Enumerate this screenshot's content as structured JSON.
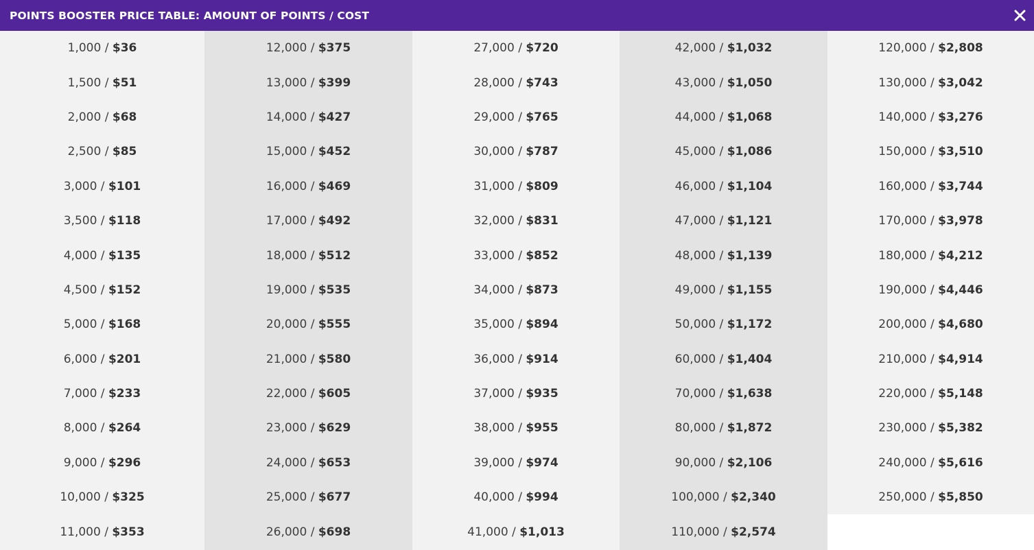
{
  "header": {
    "title": "POINTS BOOSTER PRICE TABLE: AMOUNT OF POINTS / COST",
    "close_icon": "close-icon",
    "background_color": "#52259a"
  },
  "separator": " / ",
  "columns": [
    [
      {
        "points": "1,000",
        "cost": "$36"
      },
      {
        "points": "1,500",
        "cost": "$51"
      },
      {
        "points": "2,000",
        "cost": "$68"
      },
      {
        "points": "2,500",
        "cost": "$85"
      },
      {
        "points": "3,000",
        "cost": "$101"
      },
      {
        "points": "3,500",
        "cost": "$118"
      },
      {
        "points": "4,000",
        "cost": "$135"
      },
      {
        "points": "4,500",
        "cost": "$152"
      },
      {
        "points": "5,000",
        "cost": "$168"
      },
      {
        "points": "6,000",
        "cost": "$201"
      },
      {
        "points": "7,000",
        "cost": "$233"
      },
      {
        "points": "8,000",
        "cost": "$264"
      },
      {
        "points": "9,000",
        "cost": "$296"
      },
      {
        "points": "10,000",
        "cost": "$325"
      },
      {
        "points": "11,000",
        "cost": "$353"
      }
    ],
    [
      {
        "points": "12,000",
        "cost": "$375"
      },
      {
        "points": "13,000",
        "cost": "$399"
      },
      {
        "points": "14,000",
        "cost": "$427"
      },
      {
        "points": "15,000",
        "cost": "$452"
      },
      {
        "points": "16,000",
        "cost": "$469"
      },
      {
        "points": "17,000",
        "cost": "$492"
      },
      {
        "points": "18,000",
        "cost": "$512"
      },
      {
        "points": "19,000",
        "cost": "$535"
      },
      {
        "points": "20,000",
        "cost": "$555"
      },
      {
        "points": "21,000",
        "cost": "$580"
      },
      {
        "points": "22,000",
        "cost": "$605"
      },
      {
        "points": "23,000",
        "cost": "$629"
      },
      {
        "points": "24,000",
        "cost": "$653"
      },
      {
        "points": "25,000",
        "cost": "$677"
      },
      {
        "points": "26,000",
        "cost": "$698"
      }
    ],
    [
      {
        "points": "27,000",
        "cost": "$720"
      },
      {
        "points": "28,000",
        "cost": "$743"
      },
      {
        "points": "29,000",
        "cost": "$765"
      },
      {
        "points": "30,000",
        "cost": "$787"
      },
      {
        "points": "31,000",
        "cost": "$809"
      },
      {
        "points": "32,000",
        "cost": "$831"
      },
      {
        "points": "33,000",
        "cost": "$852"
      },
      {
        "points": "34,000",
        "cost": "$873"
      },
      {
        "points": "35,000",
        "cost": "$894"
      },
      {
        "points": "36,000",
        "cost": "$914"
      },
      {
        "points": "37,000",
        "cost": "$935"
      },
      {
        "points": "38,000",
        "cost": "$955"
      },
      {
        "points": "39,000",
        "cost": "$974"
      },
      {
        "points": "40,000",
        "cost": "$994"
      },
      {
        "points": "41,000",
        "cost": "$1,013"
      }
    ],
    [
      {
        "points": "42,000",
        "cost": "$1,032"
      },
      {
        "points": "43,000",
        "cost": "$1,050"
      },
      {
        "points": "44,000",
        "cost": "$1,068"
      },
      {
        "points": "45,000",
        "cost": "$1,086"
      },
      {
        "points": "46,000",
        "cost": "$1,104"
      },
      {
        "points": "47,000",
        "cost": "$1,121"
      },
      {
        "points": "48,000",
        "cost": "$1,139"
      },
      {
        "points": "49,000",
        "cost": "$1,155"
      },
      {
        "points": "50,000",
        "cost": "$1,172"
      },
      {
        "points": "60,000",
        "cost": "$1,404"
      },
      {
        "points": "70,000",
        "cost": "$1,638"
      },
      {
        "points": "80,000",
        "cost": "$1,872"
      },
      {
        "points": "90,000",
        "cost": "$2,106"
      },
      {
        "points": "100,000",
        "cost": "$2,340"
      },
      {
        "points": "110,000",
        "cost": "$2,574"
      }
    ],
    [
      {
        "points": "120,000",
        "cost": "$2,808"
      },
      {
        "points": "130,000",
        "cost": "$3,042"
      },
      {
        "points": "140,000",
        "cost": "$3,276"
      },
      {
        "points": "150,000",
        "cost": "$3,510"
      },
      {
        "points": "160,000",
        "cost": "$3,744"
      },
      {
        "points": "170,000",
        "cost": "$3,978"
      },
      {
        "points": "180,000",
        "cost": "$4,212"
      },
      {
        "points": "190,000",
        "cost": "$4,446"
      },
      {
        "points": "200,000",
        "cost": "$4,680"
      },
      {
        "points": "210,000",
        "cost": "$4,914"
      },
      {
        "points": "220,000",
        "cost": "$5,148"
      },
      {
        "points": "230,000",
        "cost": "$5,382"
      },
      {
        "points": "240,000",
        "cost": "$5,616"
      },
      {
        "points": "250,000",
        "cost": "$5,850"
      }
    ]
  ]
}
